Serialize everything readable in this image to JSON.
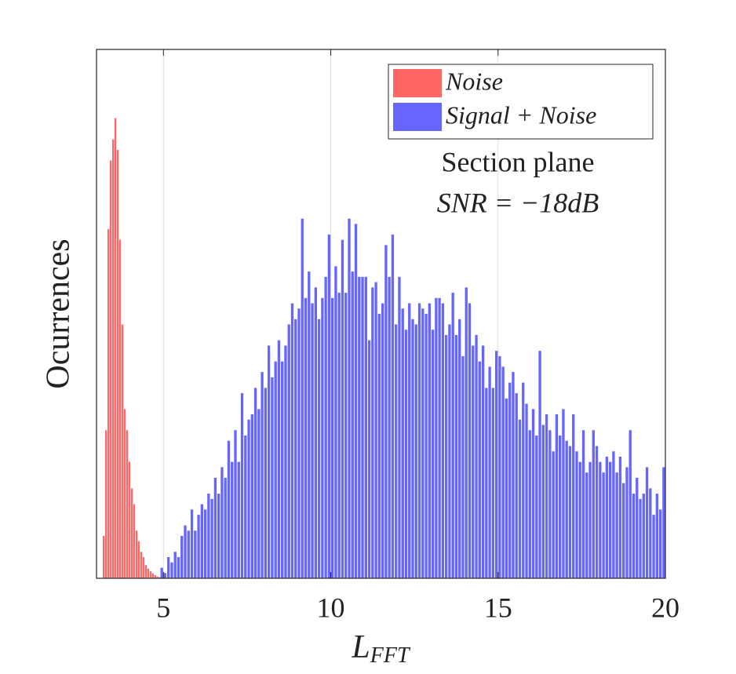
{
  "chart_data": {
    "type": "histogram",
    "xlabel": "L",
    "xlabel_subscript": "FFT",
    "ylabel": "Ocurrences",
    "annotations": [
      "Section plane",
      "SNR = −18dB"
    ],
    "xlim": [
      3,
      20
    ],
    "xticks": [
      5,
      10,
      15,
      20
    ],
    "ylim": [
      0,
      100
    ],
    "grid": "x",
    "legend": "upper right",
    "series": [
      {
        "name": "Noise",
        "color": "#ff6666",
        "bins": [
          3.18,
          3.25,
          3.32,
          3.39,
          3.46,
          3.53,
          3.6,
          3.67,
          3.74,
          3.81,
          3.88,
          3.95,
          4.02,
          4.09,
          4.16,
          4.23,
          4.3,
          4.37,
          4.44,
          4.51,
          4.58,
          4.65,
          4.72,
          4.79,
          4.86,
          4.93
        ],
        "values": [
          8,
          28,
          66,
          79,
          83,
          87,
          81,
          64,
          48,
          32,
          28,
          22,
          17,
          14,
          9,
          7,
          5,
          4,
          2.5,
          1.8,
          1.3,
          0.9,
          0.6,
          0.3,
          0.2
        ]
      },
      {
        "name": "Signal + Noise",
        "color": "#6666ff",
        "bins": [
          4.9,
          5.0,
          5.1,
          5.2,
          5.3,
          5.4,
          5.5,
          5.6,
          5.7,
          5.8,
          5.9,
          6.0,
          6.1,
          6.2,
          6.3,
          6.4,
          6.5,
          6.6,
          6.7,
          6.8,
          6.9,
          7.0,
          7.1,
          7.2,
          7.3,
          7.4,
          7.5,
          7.6,
          7.7,
          7.8,
          7.9,
          8.0,
          8.1,
          8.2,
          8.3,
          8.4,
          8.5,
          8.6,
          8.7,
          8.8,
          8.9,
          9.0,
          9.1,
          9.2,
          9.3,
          9.4,
          9.5,
          9.6,
          9.7,
          9.8,
          9.9,
          10.0,
          10.1,
          10.2,
          10.3,
          10.4,
          10.5,
          10.6,
          10.7,
          10.8,
          10.9,
          11.0,
          11.1,
          11.2,
          11.3,
          11.4,
          11.5,
          11.6,
          11.7,
          11.8,
          11.9,
          12.0,
          12.1,
          12.2,
          12.3,
          12.4,
          12.5,
          12.6,
          12.7,
          12.8,
          12.9,
          13.0,
          13.1,
          13.2,
          13.3,
          13.4,
          13.5,
          13.6,
          13.7,
          13.8,
          13.9,
          14.0,
          14.1,
          14.2,
          14.3,
          14.4,
          14.5,
          14.6,
          14.7,
          14.8,
          14.9,
          15.0,
          15.1,
          15.2,
          15.3,
          15.4,
          15.5,
          15.6,
          15.7,
          15.8,
          15.9,
          16.0,
          16.1,
          16.2,
          16.3,
          16.4,
          16.5,
          16.6,
          16.7,
          16.8,
          16.9,
          17.0,
          17.1,
          17.2,
          17.3,
          17.4,
          17.5,
          17.6,
          17.7,
          17.8,
          17.9,
          18.0,
          18.1,
          18.2,
          18.3,
          18.4,
          18.5,
          18.6,
          18.7,
          18.8,
          18.9,
          19.0,
          19.1,
          19.2,
          19.3,
          19.4,
          19.5,
          19.6,
          19.7,
          19.8,
          19.9,
          20.0
        ],
        "values": [
          2,
          1,
          4,
          3,
          5,
          4,
          8,
          10,
          9,
          13,
          9,
          12,
          14,
          13,
          16,
          15,
          19,
          16,
          21,
          19,
          26,
          22,
          28,
          22,
          35,
          27,
          30,
          31,
          36,
          32,
          39,
          36,
          44,
          38,
          41,
          45,
          41,
          44,
          48,
          52,
          49,
          51,
          68,
          53,
          58,
          52,
          55,
          49,
          53,
          57,
          65,
          53,
          59,
          54,
          64,
          54,
          68,
          58,
          67,
          57,
          57,
          57,
          45,
          55,
          56,
          50,
          52,
          63,
          57,
          65,
          48,
          57,
          51,
          47,
          52,
          49,
          48,
          52,
          51,
          50,
          52,
          47,
          53,
          53,
          52,
          46,
          48,
          54,
          46,
          49,
          42,
          55,
          52,
          44,
          46,
          41,
          44,
          36,
          40,
          36,
          43,
          42,
          40,
          34,
          37,
          39,
          35,
          30,
          37,
          33,
          28,
          32,
          27,
          43,
          29,
          31,
          28,
          24,
          31,
          27,
          32,
          26,
          25,
          31,
          24,
          22,
          28,
          20,
          22,
          28,
          25,
          22,
          20,
          23,
          22,
          24,
          20,
          23,
          18,
          21,
          28,
          16,
          19,
          15,
          16,
          21,
          17,
          12,
          16,
          13,
          21
        ]
      }
    ]
  }
}
